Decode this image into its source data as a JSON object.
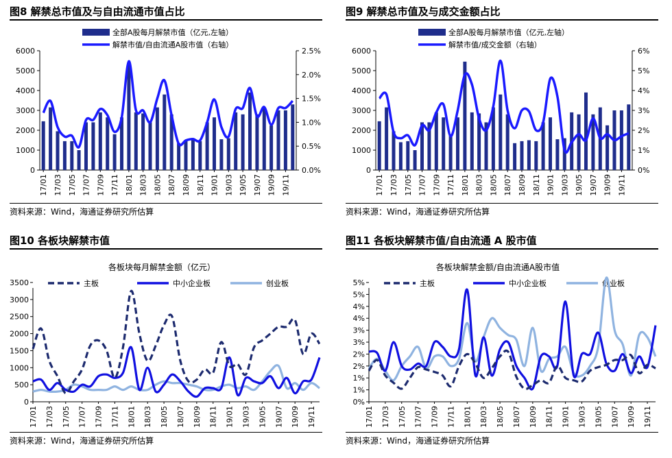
{
  "panels": [
    {
      "title": "图8  解禁总市值及与自由流通市值占比",
      "source": "资料来源：Wind，海通证券研究所估算"
    },
    {
      "title": "图9  解禁总市值及与成交金额占比",
      "source": "资料来源：Wind，海通证券研究所估算"
    },
    {
      "title": "图10 各板块解禁市值",
      "source": "资料来源：Wind，海通证券研究所估算"
    },
    {
      "title": "图11 各板块解禁市值/自由流通 A 股市值",
      "source": "资料来源：Wind，海通证券研究所估算"
    }
  ],
  "chart_data": [
    {
      "type": "bar+line",
      "categories": [
        "17/01",
        "17/02",
        "17/03",
        "17/04",
        "17/05",
        "17/06",
        "17/07",
        "17/08",
        "17/09",
        "17/10",
        "17/11",
        "17/12",
        "18/01",
        "18/02",
        "18/03",
        "18/04",
        "18/05",
        "18/06",
        "18/07",
        "18/08",
        "18/09",
        "18/10",
        "18/11",
        "18/12",
        "19/01",
        "19/02",
        "19/03",
        "19/04",
        "19/05",
        "19/06",
        "19/07",
        "19/08",
        "19/09",
        "19/10",
        "19/11",
        "19/12"
      ],
      "x_tick_labels": [
        "17/01",
        "17/03",
        "17/05",
        "17/07",
        "17/09",
        "17/11",
        "18/01",
        "18/03",
        "18/05",
        "18/07",
        "18/09",
        "18/11",
        "19/01",
        "19/03",
        "19/05",
        "19/07",
        "19/09",
        "19/11"
      ],
      "series": [
        {
          "name": "全部A股每月解禁市值（亿元,左轴）",
          "kind": "bar",
          "axis": "left",
          "values": [
            2450,
            3150,
            1950,
            1450,
            1450,
            1000,
            2400,
            2400,
            2900,
            2650,
            1800,
            2650,
            5400,
            2900,
            2850,
            2400,
            3150,
            3800,
            2800,
            1350,
            1450,
            1500,
            1450,
            2400,
            2650,
            1550,
            1600,
            2900,
            2800,
            3900,
            2800,
            3150,
            2250,
            3000,
            3000,
            3300
          ]
        },
        {
          "name": "解禁市值/自由流通A股市值（右轴）",
          "kind": "line",
          "axis": "right",
          "values": [
            1.2,
            1.45,
            0.9,
            0.7,
            0.72,
            0.48,
            1.05,
            1.05,
            1.28,
            1.15,
            0.8,
            1.1,
            2.28,
            1.25,
            1.25,
            1.0,
            1.5,
            1.88,
            1.15,
            0.55,
            0.62,
            0.65,
            0.62,
            1.0,
            1.48,
            0.9,
            0.7,
            1.28,
            1.3,
            1.72,
            1.12,
            1.32,
            0.95,
            1.3,
            1.3,
            1.45
          ]
        }
      ],
      "yleft": {
        "ticks": [
          "0",
          "1000",
          "2000",
          "3000",
          "4000",
          "5000",
          "6000"
        ],
        "lim": [
          0,
          6000
        ]
      },
      "yright": {
        "ticks": [
          "0.0%",
          "0.5%",
          "1.0%",
          "1.5%",
          "2.0%",
          "2.5%"
        ],
        "lim": [
          0,
          2.5
        ]
      },
      "colors": {
        "bar": "#1f2d8c",
        "line": "#1a1aff"
      }
    },
    {
      "type": "bar+line",
      "categories": [
        "17/01",
        "17/02",
        "17/03",
        "17/04",
        "17/05",
        "17/06",
        "17/07",
        "17/08",
        "17/09",
        "17/10",
        "17/11",
        "17/12",
        "18/01",
        "18/02",
        "18/03",
        "18/04",
        "18/05",
        "18/06",
        "18/07",
        "18/08",
        "18/09",
        "18/10",
        "18/11",
        "18/12",
        "19/01",
        "19/02",
        "19/03",
        "19/04",
        "19/05",
        "19/06",
        "19/07",
        "19/08",
        "19/09",
        "19/10",
        "19/11",
        "19/12"
      ],
      "x_tick_labels": [
        "17/01",
        "17/03",
        "17/05",
        "17/07",
        "17/09",
        "17/11",
        "18/01",
        "18/03",
        "18/05",
        "18/07",
        "18/09",
        "18/11",
        "19/01",
        "19/03",
        "19/05",
        "19/07",
        "19/09",
        "19/11"
      ],
      "series": [
        {
          "name": "全部A股每月解禁市值（亿元,左轴）",
          "kind": "bar",
          "axis": "left",
          "values": [
            2450,
            3150,
            1950,
            1400,
            1450,
            1000,
            2400,
            2400,
            2900,
            2650,
            1800,
            2650,
            5450,
            2900,
            2850,
            2400,
            3150,
            3800,
            2800,
            1350,
            1450,
            1500,
            1450,
            2400,
            2650,
            1550,
            1600,
            2900,
            2800,
            3900,
            2800,
            3150,
            2250,
            3000,
            3000,
            3300
          ]
        },
        {
          "name": "解禁市值/成交金额（右轴）",
          "kind": "line",
          "axis": "right",
          "values": [
            3.6,
            3.8,
            1.9,
            1.6,
            1.75,
            1.25,
            2.25,
            2.0,
            2.9,
            3.3,
            1.7,
            3.0,
            4.8,
            4.3,
            2.6,
            2.0,
            3.2,
            5.5,
            3.0,
            2.1,
            3.0,
            2.95,
            2.0,
            2.4,
            4.6,
            3.7,
            1.0,
            1.4,
            1.8,
            1.5,
            2.6,
            1.6,
            1.8,
            1.5,
            1.7,
            1.85
          ]
        }
      ],
      "yleft": {
        "ticks": [
          "0",
          "1000",
          "2000",
          "3000",
          "4000",
          "5000",
          "6000"
        ],
        "lim": [
          0,
          6000
        ]
      },
      "yright": {
        "ticks": [
          "0%",
          "1%",
          "2%",
          "3%",
          "4%",
          "5%",
          "6%"
        ],
        "lim": [
          0,
          6
        ]
      },
      "colors": {
        "bar": "#1f2d8c",
        "line": "#1a1aff"
      }
    },
    {
      "type": "line",
      "title": "各板块每月解禁金额（亿元）",
      "categories": [
        "17/01",
        "17/02",
        "17/03",
        "17/04",
        "17/05",
        "17/06",
        "17/07",
        "17/08",
        "17/09",
        "17/10",
        "17/11",
        "17/12",
        "18/01",
        "18/02",
        "18/03",
        "18/04",
        "18/05",
        "18/06",
        "18/07",
        "18/08",
        "18/09",
        "18/10",
        "18/11",
        "18/12",
        "19/01",
        "19/02",
        "19/03",
        "19/04",
        "19/05",
        "19/06",
        "19/07",
        "19/08",
        "19/09",
        "19/10",
        "19/11",
        "19/12"
      ],
      "x_tick_labels": [
        "17/01",
        "17/03",
        "17/05",
        "17/07",
        "17/09",
        "17/11",
        "18/01",
        "18/03",
        "18/05",
        "18/07",
        "18/09",
        "18/11",
        "19/01",
        "19/03",
        "19/05",
        "19/07",
        "19/09",
        "19/11"
      ],
      "series": [
        {
          "name": "主板",
          "style": "dashed",
          "color": "#1c2a6e",
          "values": [
            1550,
            2150,
            1200,
            750,
            250,
            600,
            950,
            1650,
            1800,
            1500,
            700,
            1600,
            3250,
            2000,
            1200,
            1650,
            2250,
            2500,
            1200,
            600,
            650,
            950,
            850,
            1750,
            1050,
            1100,
            800,
            1600,
            1800,
            2000,
            2200,
            2200,
            2400,
            1400,
            2000,
            1700
          ]
        },
        {
          "name": "中小企业板",
          "style": "solid",
          "color": "#1010e0",
          "values": [
            600,
            650,
            350,
            550,
            350,
            300,
            500,
            450,
            750,
            800,
            700,
            850,
            1600,
            350,
            1000,
            300,
            500,
            800,
            600,
            300,
            150,
            400,
            400,
            400,
            1300,
            200,
            700,
            600,
            550,
            750,
            400,
            700,
            250,
            600,
            650,
            1300
          ]
        },
        {
          "name": "创业板",
          "style": "solid",
          "color": "#8fb3e0",
          "values": [
            300,
            350,
            300,
            300,
            350,
            500,
            450,
            350,
            350,
            350,
            450,
            350,
            450,
            350,
            350,
            500,
            600,
            550,
            550,
            500,
            450,
            350,
            350,
            450,
            500,
            400,
            450,
            350,
            600,
            900,
            1050,
            400,
            550,
            350,
            550,
            400
          ]
        }
      ],
      "y": {
        "ticks": [
          "0",
          "500",
          "1000",
          "1500",
          "2000",
          "2500",
          "3000",
          "3500"
        ],
        "lim": [
          0,
          3500
        ]
      }
    },
    {
      "type": "line",
      "title": "各板块解禁金额/自由流通A股市值",
      "categories": [
        "17/01",
        "17/02",
        "17/03",
        "17/04",
        "17/05",
        "17/06",
        "17/07",
        "17/08",
        "17/09",
        "17/10",
        "17/11",
        "17/12",
        "18/01",
        "18/02",
        "18/03",
        "18/04",
        "18/05",
        "18/06",
        "18/07",
        "18/08",
        "18/09",
        "18/10",
        "18/11",
        "18/12",
        "19/01",
        "19/02",
        "19/03",
        "19/04",
        "19/05",
        "19/06",
        "19/07",
        "19/08",
        "19/09",
        "19/10",
        "19/11",
        "19/12"
      ],
      "x_tick_labels": [
        "17/01",
        "17/03",
        "17/05",
        "17/07",
        "17/09",
        "17/11",
        "18/01",
        "18/03",
        "18/05",
        "18/07",
        "18/09",
        "18/11",
        "19/01",
        "19/03",
        "19/05",
        "19/07",
        "19/09",
        "19/11"
      ],
      "series": [
        {
          "name": "主板",
          "style": "dashed",
          "color": "#1c2a6e",
          "values": [
            1.3,
            1.75,
            1.1,
            0.8,
            0.55,
            1.0,
            1.45,
            1.35,
            1.25,
            1.1,
            0.65,
            1.5,
            2.0,
            1.6,
            1.0,
            1.4,
            1.9,
            2.1,
            1.05,
            0.55,
            0.7,
            0.9,
            0.8,
            1.5,
            1.0,
            0.9,
            0.85,
            1.3,
            1.45,
            1.55,
            1.75,
            1.75,
            1.95,
            1.2,
            1.55,
            1.4
          ]
        },
        {
          "name": "中小企业板",
          "style": "solid",
          "color": "#1010e0",
          "values": [
            2.1,
            2.05,
            1.3,
            2.5,
            1.5,
            1.35,
            1.6,
            1.5,
            2.5,
            2.3,
            1.9,
            2.2,
            4.7,
            1.1,
            2.7,
            1.1,
            2.2,
            2.5,
            1.5,
            1.0,
            0.55,
            1.9,
            1.9,
            1.5,
            4.2,
            1.1,
            2.0,
            2.0,
            2.9,
            1.6,
            1.3,
            2.0,
            1.2,
            1.9,
            1.45,
            3.2
          ]
        },
        {
          "name": "创业板",
          "style": "solid",
          "color": "#8fb3e0",
          "values": [
            1.4,
            1.8,
            1.3,
            0.9,
            1.5,
            1.9,
            2.3,
            1.4,
            1.9,
            1.9,
            1.5,
            1.8,
            3.3,
            1.7,
            2.7,
            3.5,
            3.1,
            2.8,
            2.6,
            1.5,
            3.1,
            1.3,
            1.8,
            1.9,
            2.3,
            1.2,
            1.1,
            1.5,
            2.3,
            5.2,
            3.0,
            2.4,
            1.1,
            2.8,
            2.7,
            1.9
          ]
        }
      ],
      "y": {
        "ticks": [
          "0%",
          "1%",
          "1%",
          "2%",
          "2%",
          "3%",
          "3%",
          "4%",
          "4%",
          "5%",
          "5%"
        ],
        "lim": [
          0,
          5
        ]
      }
    }
  ]
}
